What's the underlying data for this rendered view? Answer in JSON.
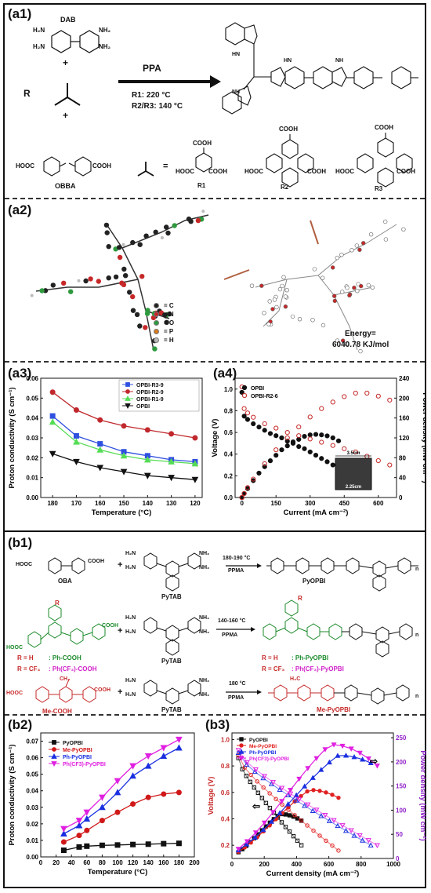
{
  "labels": {
    "a1": "(a1)",
    "a2": "(a2)",
    "a3": "(a3)",
    "a4": "(a4)",
    "b1": "(b1)",
    "b2": "(b2)",
    "b3": "(b3)"
  },
  "a1": {
    "dab": "DAB",
    "r": "R",
    "obba": "OBBA",
    "plus": "+",
    "equals": "=",
    "reagent": "PPA",
    "cond1": "R1:     220 °C",
    "cond2": "R2/R3: 140 °C",
    "cooh": "COOH",
    "hooc": "HOOC",
    "r1": "R1",
    "r2": "R2",
    "r3": "R3",
    "nh": "NH",
    "n": "N",
    "hn": "HN"
  },
  "a2": {
    "legend": [
      "C",
      "N",
      "O",
      "P",
      "H"
    ],
    "legend_colors": [
      "#222222",
      "#c62828",
      "#2e9a3e",
      "#d67a1e",
      "#bbbbbb"
    ],
    "energy_label": "Energy=",
    "energy_value": "6040.78  KJ/mol"
  },
  "a3": {
    "chart_data": {
      "type": "line",
      "xlabel": "Temperature (°C)",
      "ylabel": "Proton conductivity (S cm⁻¹)",
      "x": [
        180,
        170,
        160,
        150,
        140,
        130,
        120
      ],
      "xlim": [
        185,
        117
      ],
      "ylim": [
        0,
        0.06
      ],
      "xticks": [
        180,
        170,
        160,
        150,
        140,
        130,
        120
      ],
      "yticks": [
        0.0,
        0.01,
        0.02,
        0.03,
        0.04,
        0.05,
        0.06
      ],
      "legend_position": "top-right",
      "series": [
        {
          "name": "OPBI-R3-9",
          "color": "#3050e0",
          "marker": "square",
          "values": [
            0.041,
            0.031,
            0.027,
            0.023,
            0.021,
            0.019,
            0.018
          ]
        },
        {
          "name": "OPBI-R2-9",
          "color": "#c0282d",
          "marker": "circle",
          "values": [
            0.053,
            0.044,
            0.039,
            0.036,
            0.034,
            0.032,
            0.03
          ]
        },
        {
          "name": "OPBI-R1-9",
          "color": "#55dd55",
          "marker": "triangle",
          "values": [
            0.038,
            0.028,
            0.024,
            0.021,
            0.019,
            0.018,
            0.017
          ]
        },
        {
          "name": "OPBI",
          "color": "#111111",
          "marker": "triangle-down",
          "values": [
            0.022,
            0.018,
            0.015,
            0.013,
            0.011,
            0.01,
            0.009
          ]
        }
      ]
    }
  },
  "a4": {
    "chart_data": {
      "type": "scatter",
      "xlabel": "Current (mA cm⁻²)",
      "ylabel": "Voltage (V)",
      "ylabel_right": "Power density (mW cm⁻²)",
      "xlim": [
        -30,
        680
      ],
      "ylim": [
        0,
        1.1
      ],
      "ylim_right": [
        0,
        240
      ],
      "xticks": [
        0,
        150,
        300,
        450,
        600
      ],
      "yticks": [
        0.0,
        0.2,
        0.4,
        0.6,
        0.8,
        1.0
      ],
      "yticks_right": [
        0,
        40,
        80,
        120,
        160,
        200,
        240
      ],
      "legend_position": "top-left",
      "series": [
        {
          "name": "OPBI",
          "color": "#111111",
          "fill": "solid",
          "voltage_x": [
            0,
            10,
            25,
            50,
            75,
            100,
            125,
            150,
            175,
            200,
            225,
            250,
            275,
            300,
            325,
            350,
            375,
            400,
            425
          ],
          "voltage_y": [
            0.97,
            0.75,
            0.72,
            0.68,
            0.65,
            0.62,
            0.59,
            0.57,
            0.55,
            0.52,
            0.5,
            0.47,
            0.45,
            0.42,
            0.39,
            0.36,
            0.33,
            0.3,
            0.27
          ],
          "power_x": [
            0,
            10,
            25,
            50,
            75,
            100,
            125,
            150,
            175,
            200,
            225,
            250,
            275,
            300,
            325,
            350,
            375,
            400,
            425
          ],
          "power_y": [
            0,
            8,
            18,
            34,
            49,
            62,
            74,
            85,
            96,
            104,
            112,
            117,
            123,
            126,
            127,
            126,
            124,
            120,
            114
          ]
        },
        {
          "name": "OPBI-R2-6",
          "color": "#c62828",
          "fill": "open",
          "voltage_x": [
            0,
            10,
            25,
            50,
            100,
            150,
            200,
            250,
            300,
            350,
            400,
            450,
            500,
            550,
            600,
            650
          ],
          "voltage_y": [
            1.02,
            0.82,
            0.78,
            0.74,
            0.68,
            0.64,
            0.6,
            0.57,
            0.54,
            0.51,
            0.48,
            0.45,
            0.42,
            0.38,
            0.34,
            0.3
          ],
          "power_x": [
            0,
            10,
            25,
            50,
            100,
            150,
            200,
            250,
            300,
            350,
            400,
            450,
            500,
            550,
            600,
            650
          ],
          "power_y": [
            0,
            8,
            20,
            37,
            68,
            96,
            120,
            142,
            162,
            179,
            192,
            203,
            210,
            210,
            204,
            196
          ]
        }
      ],
      "inset_width_label": "3.5cm",
      "inset_height_label": "2.25cm"
    }
  },
  "b1": {
    "row1": {
      "acid": "OBA",
      "amine": "PyTAB",
      "temp": "180-190 °C",
      "solvent": "PPMA",
      "product": "PyOPBI"
    },
    "row2": {
      "acid_r_h": "R = H",
      "acid_h_name": ": Ph-COOH",
      "acid_r_cf3": "R = CF₃",
      "acid_cf3_name": ": Ph(CF₃)-COOH",
      "amine": "PyTAB",
      "temp": "140-160 °C",
      "solvent": "PPMA",
      "prod_r_h": "R = H",
      "prod_h_name": ": Ph-PyOPBI",
      "prod_r_cf3": "R = CF₃",
      "prod_cf3_name": ": Ph(CF₃)-PyOPBI",
      "r_label": "R"
    },
    "row3": {
      "acid": "Me-COOH",
      "amine": "PyTAB",
      "temp": "180 °C",
      "solvent": "PPMA",
      "product": "Me-PyOPBI",
      "ch3": "CH₃",
      "h3c": "H₃C"
    },
    "h2n": "H₂N",
    "nh2": "NH₂",
    "hooc": "HOOC",
    "cooh": "COOH",
    "plus": "+",
    "n": "n"
  },
  "b2": {
    "chart_data": {
      "type": "line",
      "xlabel": "Temperature (°C)",
      "ylabel": "Proton conductivity (S cm⁻¹)",
      "x": [
        30,
        50,
        60,
        80,
        100,
        120,
        140,
        160,
        180
      ],
      "xlim": [
        0,
        200
      ],
      "ylim": [
        0,
        0.075
      ],
      "xticks": [
        0,
        20,
        40,
        60,
        80,
        100,
        120,
        140,
        160,
        180,
        200
      ],
      "yticks": [
        0.0,
        0.01,
        0.02,
        0.03,
        0.04,
        0.05,
        0.06,
        0.07
      ],
      "legend_position": "top-left",
      "series": [
        {
          "name": "PyOPBI",
          "color": "#111111",
          "marker": "square",
          "values": [
            0.004,
            0.006,
            0.0065,
            0.007,
            0.0072,
            0.0075,
            0.0077,
            0.008,
            0.0082
          ]
        },
        {
          "name": "Me-PyOPBI",
          "color": "#d01818",
          "marker": "circle",
          "values": [
            0.009,
            0.013,
            0.016,
            0.022,
            0.027,
            0.032,
            0.036,
            0.038,
            0.039
          ]
        },
        {
          "name": "Ph-PyOPBI",
          "color": "#1a30e0",
          "marker": "triangle",
          "values": [
            0.014,
            0.019,
            0.023,
            0.03,
            0.039,
            0.049,
            0.055,
            0.061,
            0.066
          ]
        },
        {
          "name": "Ph(CF3)-PyOPBI",
          "color": "#e020e0",
          "marker": "triangle-down",
          "values": [
            0.017,
            0.022,
            0.027,
            0.036,
            0.046,
            0.055,
            0.061,
            0.066,
            0.071
          ]
        }
      ]
    }
  },
  "b3": {
    "chart_data": {
      "type": "scatter",
      "xlabel": "Current density (mA cm⁻²)",
      "ylabel": "Voltage (V)",
      "ylabel_right": "Power density (mW cm⁻²)",
      "xlim": [
        0,
        1000
      ],
      "ylim": [
        0.1,
        1.05
      ],
      "ylim_right": [
        0,
        260
      ],
      "xticks": [
        0,
        200,
        400,
        600,
        800,
        1000
      ],
      "yticks": [
        0.2,
        0.4,
        0.6,
        0.8,
        1.0
      ],
      "yticks_right": [
        0,
        50,
        100,
        150,
        200,
        250
      ],
      "legend_position": "top-left",
      "series": [
        {
          "name": "PyOPBI",
          "color": "#111111",
          "end_x": 430,
          "v0": 0.86,
          "v_end": 0.2,
          "p_peak": 92,
          "p_peak_x": 300
        },
        {
          "name": "Me-PyOPBI",
          "color": "#e02020",
          "end_x": 660,
          "v0": 0.88,
          "v_end": 0.16,
          "p_peak": 142,
          "p_peak_x": 480
        },
        {
          "name": "Ph-PyOPBI",
          "color": "#1a30e0",
          "end_x": 860,
          "v0": 0.9,
          "v_end": 0.2,
          "p_peak": 214,
          "p_peak_x": 660
        },
        {
          "name": "Ph(CF3)-PyOPBI",
          "color": "#e020e0",
          "end_x": 900,
          "v0": 0.92,
          "v_end": 0.2,
          "p_peak": 236,
          "p_peak_x": 610
        }
      ],
      "arrow_left": "⇦",
      "arrow_right": "⇨"
    }
  }
}
